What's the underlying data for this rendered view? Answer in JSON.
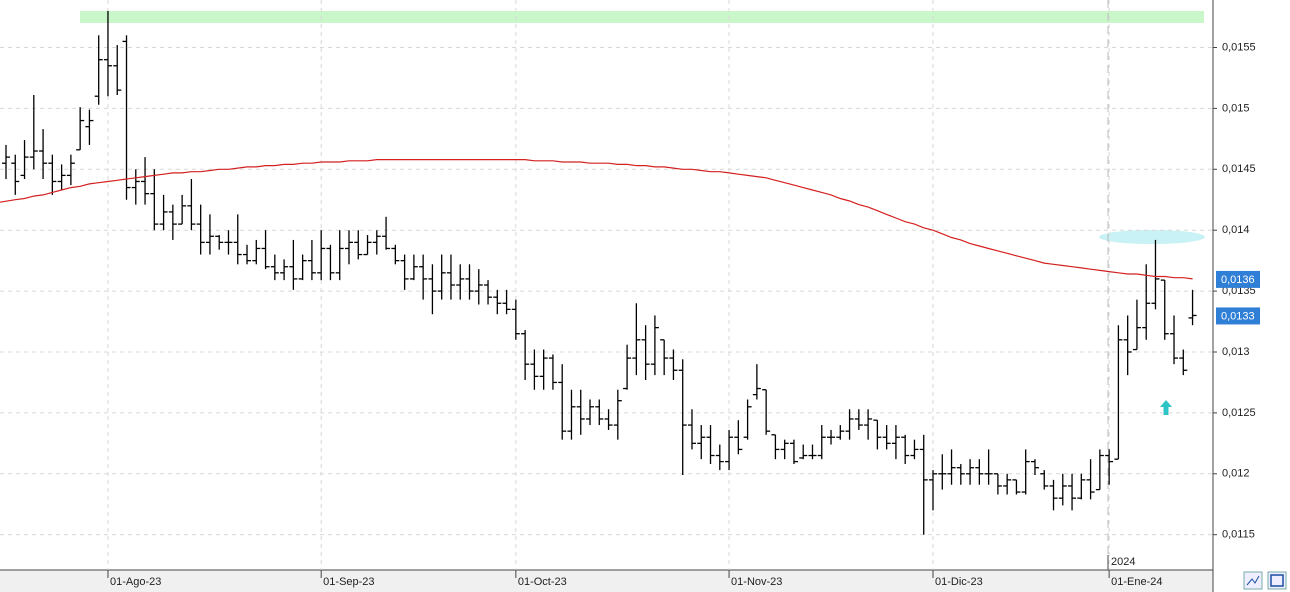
{
  "chart_data": {
    "type": "ohlc",
    "year_label": "2024",
    "categories": [
      null,
      null,
      null,
      null,
      null,
      null,
      null,
      null,
      null,
      null,
      null,
      "01-Ago-23",
      null,
      null,
      null,
      null,
      null,
      null,
      null,
      null,
      null,
      null,
      null,
      null,
      null,
      null,
      null,
      null,
      null,
      null,
      null,
      null,
      null,
      null,
      "01-Sep-23",
      null,
      null,
      null,
      null,
      null,
      null,
      null,
      null,
      null,
      null,
      null,
      null,
      null,
      null,
      null,
      null,
      null,
      null,
      null,
      null,
      "01-Oct-23",
      null,
      null,
      null,
      null,
      null,
      null,
      null,
      null,
      null,
      null,
      null,
      null,
      null,
      null,
      null,
      null,
      null,
      null,
      null,
      null,
      null,
      null,
      "01-Nov-23",
      null,
      null,
      null,
      null,
      null,
      null,
      null,
      null,
      null,
      null,
      null,
      null,
      null,
      null,
      null,
      null,
      null,
      null,
      null,
      null,
      null,
      "01-Dic-23",
      null,
      null,
      null,
      null,
      null,
      null,
      null,
      null,
      null,
      null,
      null,
      null,
      null,
      null,
      null,
      null,
      null,
      null,
      "01-Ene-24",
      null,
      null,
      null,
      null,
      null,
      null,
      null,
      null,
      null
    ],
    "series": [
      {
        "type": "ohlc",
        "color": "#000000",
        "open": [
          0.01455,
          0.01455,
          0.01445,
          0.0146,
          0.01465,
          0.01455,
          0.0144,
          0.01445,
          0.01466,
          0.01485,
          0.0151,
          0.0154,
          0.01535,
          0.01555,
          0.01435,
          0.0144,
          0.0143,
          0.01405,
          0.01415,
          0.01405,
          0.0142,
          0.01405,
          0.0139,
          0.01395,
          0.0139,
          0.0139,
          0.0138,
          0.01375,
          0.01385,
          0.0137,
          0.01365,
          0.0137,
          0.0136,
          0.01375,
          0.01365,
          0.01385,
          0.01365,
          0.01385,
          0.0139,
          0.0138,
          0.0139,
          0.01395,
          0.01385,
          0.01375,
          0.0136,
          0.0137,
          0.0136,
          0.0135,
          0.01365,
          0.01355,
          0.0136,
          0.0135,
          0.01355,
          0.01345,
          0.0134,
          0.01335,
          0.01315,
          0.0129,
          0.0128,
          0.01295,
          0.01275,
          0.01235,
          0.01255,
          0.01245,
          0.01255,
          0.01245,
          0.0124,
          0.0127,
          0.01295,
          0.0131,
          0.0129,
          0.0131,
          0.01295,
          0.01285,
          0.0124,
          0.01225,
          0.0123,
          0.01215,
          0.0121,
          0.0123,
          0.0123,
          0.01265,
          0.01269,
          0.01232,
          0.0122,
          0.01225,
          0.01213,
          0.01215,
          0.01215,
          0.0123,
          0.0123,
          0.01235,
          0.01245,
          0.0124,
          0.01244,
          0.0123,
          0.01225,
          0.0123,
          0.01215,
          0.0122,
          0.01195,
          0.012,
          0.012,
          0.01205,
          0.012,
          0.01205,
          0.012,
          0.012,
          0.0119,
          0.01195,
          0.01185,
          0.0121,
          0.012,
          0.0119,
          0.0118,
          0.0119,
          0.0118,
          0.01195,
          0.01187,
          0.01215,
          0.01212,
          0.0131,
          0.01302,
          0.0132,
          0.0134,
          0.01359,
          0.01315,
          0.01295,
          0.01328
        ],
        "high": [
          0.0147,
          0.01462,
          0.01474,
          0.01511,
          0.01483,
          0.01462,
          0.01454,
          0.01462,
          0.01501,
          0.01499,
          0.0156,
          0.0158,
          0.01552,
          0.0156,
          0.0145,
          0.0146,
          0.0145,
          0.01429,
          0.01421,
          0.01429,
          0.01442,
          0.01421,
          0.01413,
          0.01396,
          0.014,
          0.01413,
          0.01388,
          0.01392,
          0.014,
          0.0138,
          0.01376,
          0.01392,
          0.0138,
          0.01392,
          0.014,
          0.01388,
          0.014,
          0.014,
          0.014,
          0.01396,
          0.014,
          0.01411,
          0.01388,
          0.0138,
          0.0138,
          0.0138,
          0.01372,
          0.0138,
          0.0138,
          0.01372,
          0.01372,
          0.01368,
          0.01359,
          0.01351,
          0.01351,
          0.01343,
          0.01318,
          0.01302,
          0.01302,
          0.01298,
          0.0129,
          0.01269,
          0.01269,
          0.01261,
          0.01261,
          0.01253,
          0.01269,
          0.01306,
          0.0134,
          0.01322,
          0.0133,
          0.0131,
          0.01302,
          0.01294,
          0.01253,
          0.0124,
          0.0124,
          0.01224,
          0.01236,
          0.01244,
          0.01261,
          0.0129,
          0.01269,
          0.01232,
          0.01228,
          0.01228,
          0.01224,
          0.01224,
          0.0124,
          0.01236,
          0.0124,
          0.01253,
          0.01253,
          0.01253,
          0.01244,
          0.0124,
          0.0124,
          0.01232,
          0.01228,
          0.01232,
          0.01203,
          0.01216,
          0.0122,
          0.01208,
          0.01212,
          0.01212,
          0.0122,
          0.012,
          0.012,
          0.01195,
          0.0122,
          0.01212,
          0.01203,
          0.01195,
          0.012,
          0.012,
          0.012,
          0.01212,
          0.0122,
          0.0122,
          0.01322,
          0.0133,
          0.01343,
          0.01372,
          0.01392,
          0.01359,
          0.0133,
          0.01302,
          0.01351
        ],
        "low": [
          0.01442,
          0.01429,
          0.01442,
          0.0145,
          0.01442,
          0.01429,
          0.01433,
          0.01437,
          0.01466,
          0.0147,
          0.01503,
          0.0151,
          0.01511,
          0.01425,
          0.01421,
          0.01421,
          0.014,
          0.014,
          0.01392,
          0.01405,
          0.014,
          0.0138,
          0.0138,
          0.01384,
          0.0138,
          0.01372,
          0.01372,
          0.01372,
          0.01368,
          0.01359,
          0.01359,
          0.01351,
          0.01359,
          0.01359,
          0.01359,
          0.01359,
          0.01359,
          0.01372,
          0.01376,
          0.0138,
          0.0138,
          0.01384,
          0.01372,
          0.01351,
          0.01359,
          0.01343,
          0.01331,
          0.01343,
          0.01343,
          0.01343,
          0.01343,
          0.01339,
          0.01339,
          0.01331,
          0.01331,
          0.0131,
          0.01277,
          0.01269,
          0.01269,
          0.01269,
          0.01228,
          0.01228,
          0.01232,
          0.0124,
          0.0124,
          0.01236,
          0.01228,
          0.01269,
          0.01281,
          0.01277,
          0.01281,
          0.01281,
          0.01277,
          0.01199,
          0.0122,
          0.01212,
          0.01208,
          0.01203,
          0.01203,
          0.01216,
          0.01228,
          0.01261,
          0.01232,
          0.01212,
          0.01212,
          0.01208,
          0.01212,
          0.01212,
          0.01212,
          0.01224,
          0.01228,
          0.01228,
          0.01236,
          0.01228,
          0.0122,
          0.0122,
          0.01212,
          0.01208,
          0.01212,
          0.0115,
          0.0117,
          0.01187,
          0.01191,
          0.01191,
          0.01191,
          0.01191,
          0.01191,
          0.01183,
          0.01183,
          0.01183,
          0.01183,
          0.01199,
          0.01187,
          0.0117,
          0.01174,
          0.0117,
          0.01179,
          0.01179,
          0.01187,
          0.01191,
          0.01212,
          0.01281,
          0.01302,
          0.0131,
          0.01335,
          0.0131,
          0.0129,
          0.01281,
          0.01322
        ],
        "close": [
          0.0146,
          0.0144,
          0.0146,
          0.01465,
          0.01455,
          0.0144,
          0.01445,
          0.01455,
          0.0149,
          0.0149,
          0.0154,
          0.01535,
          0.01515,
          0.01435,
          0.0144,
          0.0143,
          0.01405,
          0.01415,
          0.01405,
          0.0142,
          0.01405,
          0.0139,
          0.01395,
          0.0139,
          0.0139,
          0.0138,
          0.01375,
          0.01385,
          0.0137,
          0.01365,
          0.0137,
          0.0136,
          0.01375,
          0.01365,
          0.01385,
          0.01365,
          0.01385,
          0.0139,
          0.0138,
          0.0139,
          0.01395,
          0.01385,
          0.01375,
          0.0136,
          0.0137,
          0.0136,
          0.0135,
          0.01365,
          0.01355,
          0.0136,
          0.0135,
          0.01355,
          0.01345,
          0.0134,
          0.01335,
          0.01315,
          0.0129,
          0.0128,
          0.01295,
          0.01275,
          0.01235,
          0.01255,
          0.01245,
          0.01255,
          0.01245,
          0.0124,
          0.0126,
          0.01295,
          0.0131,
          0.0129,
          0.0132,
          0.01295,
          0.01285,
          0.0124,
          0.01225,
          0.0123,
          0.01215,
          0.0121,
          0.0123,
          0.0122,
          0.01255,
          0.0127,
          0.01235,
          0.0122,
          0.01225,
          0.0121,
          0.01215,
          0.01215,
          0.0123,
          0.0123,
          0.01235,
          0.01245,
          0.0124,
          0.01245,
          0.0123,
          0.01225,
          0.0123,
          0.01215,
          0.0122,
          0.01195,
          0.012,
          0.012,
          0.01205,
          0.012,
          0.01205,
          0.012,
          0.012,
          0.0119,
          0.01195,
          0.01185,
          0.0121,
          0.01205,
          0.0119,
          0.0118,
          0.0119,
          0.0118,
          0.01195,
          0.01185,
          0.01215,
          0.0121,
          0.0131,
          0.013,
          0.0132,
          0.0134,
          0.0136,
          0.01315,
          0.01295,
          0.01285,
          0.0133
        ]
      },
      {
        "type": "line",
        "color": "#d42020",
        "values": [
          0.01423,
          0.01425,
          0.01426,
          0.01428,
          0.01429,
          0.01431,
          0.01433,
          0.01435,
          0.01436,
          0.01438,
          0.01439,
          0.0144,
          0.01441,
          0.01442,
          0.01443,
          0.01444,
          0.01445,
          0.01446,
          0.01447,
          0.01447,
          0.01448,
          0.01448,
          0.01449,
          0.0145,
          0.0145,
          0.01451,
          0.01452,
          0.01452,
          0.01453,
          0.01453,
          0.01454,
          0.01454,
          0.01455,
          0.01455,
          0.01456,
          0.01456,
          0.01456,
          0.01457,
          0.01457,
          0.01457,
          0.01458,
          0.01458,
          0.01458,
          0.01458,
          0.01458,
          0.01458,
          0.01458,
          0.01458,
          0.01458,
          0.01458,
          0.01458,
          0.01458,
          0.01458,
          0.01458,
          0.01458,
          0.01458,
          0.01458,
          0.01457,
          0.01457,
          0.01457,
          0.01456,
          0.01456,
          0.01456,
          0.01455,
          0.01455,
          0.01455,
          0.01454,
          0.01454,
          0.01453,
          0.01453,
          0.01452,
          0.01452,
          0.01451,
          0.0145,
          0.0145,
          0.01449,
          0.01448,
          0.01448,
          0.01447,
          0.01446,
          0.01445,
          0.01444,
          0.01443,
          0.01441,
          0.01439,
          0.01437,
          0.01435,
          0.01433,
          0.01431,
          0.01429,
          0.01426,
          0.01424,
          0.01421,
          0.01419,
          0.01416,
          0.01413,
          0.0141,
          0.01407,
          0.01405,
          0.01402,
          0.014,
          0.01397,
          0.01394,
          0.01392,
          0.01389,
          0.01387,
          0.01385,
          0.01383,
          0.01381,
          0.01379,
          0.01377,
          0.01375,
          0.01373,
          0.01372,
          0.01371,
          0.0137,
          0.01369,
          0.01368,
          0.01367,
          0.01366,
          0.01365,
          0.01364,
          0.01364,
          0.01363,
          0.01362,
          0.01362,
          0.01361,
          0.01361,
          0.0136
        ]
      }
    ],
    "ylim": [
      0.01121,
      0.01589
    ],
    "yticks": [
      {
        "value": 0.0115,
        "label": "0,0115"
      },
      {
        "value": 0.012,
        "label": "0,012"
      },
      {
        "value": 0.0125,
        "label": "0,0125"
      },
      {
        "value": 0.013,
        "label": "0,013"
      },
      {
        "value": 0.0135,
        "label": "0,0135"
      },
      {
        "value": 0.014,
        "label": "0,014"
      },
      {
        "value": 0.0145,
        "label": "0,0145"
      },
      {
        "value": 0.015,
        "label": "0,015"
      },
      {
        "value": 0.0155,
        "label": "0,0155"
      }
    ],
    "grid": true,
    "markers": [
      {
        "value": 0.0136,
        "label": "0,0136",
        "color": "#2f7fd6"
      },
      {
        "value": 0.0133,
        "label": "0,0133",
        "color": "#2f7fd6"
      }
    ]
  }
}
